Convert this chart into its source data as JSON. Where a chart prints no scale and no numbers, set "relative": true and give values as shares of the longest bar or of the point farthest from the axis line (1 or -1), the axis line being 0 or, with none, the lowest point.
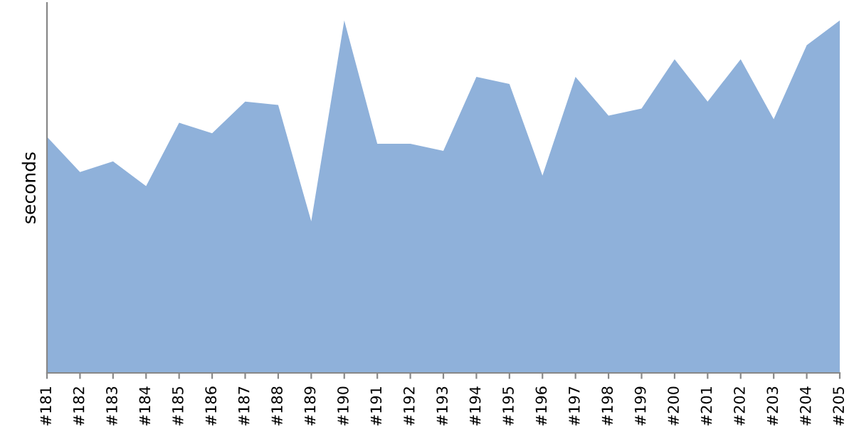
{
  "chart_data": {
    "type": "area",
    "relative": true,
    "ylabel": "seconds",
    "categories": [
      "#181",
      "#182",
      "#183",
      "#184",
      "#185",
      "#186",
      "#187",
      "#188",
      "#189",
      "#190",
      "#191",
      "#192",
      "#193",
      "#194",
      "#195",
      "#196",
      "#197",
      "#198",
      "#199",
      "#200",
      "#201",
      "#202",
      "#203",
      "#204",
      "#205"
    ],
    "series": [
      {
        "color": "#8fb1da",
        "values": [
          0.67,
          0.57,
          0.6,
          0.53,
          0.71,
          0.68,
          0.77,
          0.76,
          0.43,
          1.0,
          0.65,
          0.65,
          0.63,
          0.84,
          0.82,
          0.56,
          0.84,
          0.73,
          0.75,
          0.89,
          0.77,
          0.89,
          0.72,
          0.93,
          1.0
        ]
      }
    ]
  }
}
